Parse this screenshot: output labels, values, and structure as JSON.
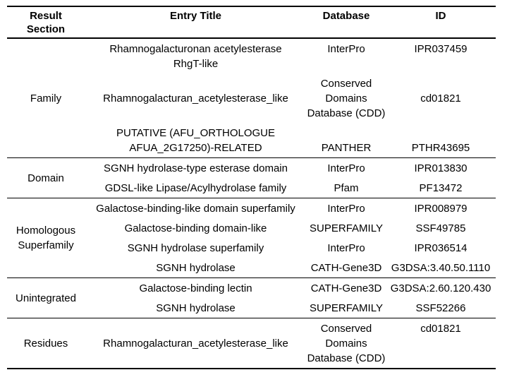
{
  "header": {
    "result_section": "Result Section",
    "entry_title": "Entry Title",
    "database": "Database",
    "id": "ID"
  },
  "sections": [
    {
      "label": "Family",
      "entries": [
        {
          "title": [
            "Rhamnogalacturonan acetylesterase",
            "RhgT-like"
          ],
          "database": [
            "InterPro"
          ],
          "id": [
            "IPR037459"
          ],
          "title_align": "top",
          "db_align": "top",
          "id_align": "top"
        },
        {
          "title": [
            "Rhamnogalacturan_acetylesterase_like"
          ],
          "database": [
            "Conserved",
            "Domains",
            "Database (CDD)"
          ],
          "id": [
            "cd01821"
          ],
          "title_align": "middle",
          "db_align": "middle",
          "id_align": "middle"
        },
        {
          "title": [
            "PUTATIVE (AFU_ORTHOLOGUE",
            "AFUA_2G17250)-RELATED"
          ],
          "database": [
            "PANTHER"
          ],
          "id": [
            "PTHR43695"
          ],
          "title_align": "bottom",
          "db_align": "bottom",
          "id_align": "bottom"
        }
      ]
    },
    {
      "label": "Domain",
      "entries": [
        {
          "title": [
            "SGNH hydrolase-type esterase domain"
          ],
          "database": [
            "InterPro"
          ],
          "id": [
            "IPR013830"
          ]
        },
        {
          "title": [
            "GDSL-like Lipase/Acylhydrolase family"
          ],
          "database": [
            "Pfam"
          ],
          "id": [
            "PF13472"
          ]
        }
      ]
    },
    {
      "label": "Homologous Superfamily",
      "entries": [
        {
          "title": [
            "Galactose-binding-like domain superfamily"
          ],
          "database": [
            "InterPro"
          ],
          "id": [
            "IPR008979"
          ]
        },
        {
          "title": [
            "Galactose-binding domain-like"
          ],
          "database": [
            "SUPERFAMILY"
          ],
          "id": [
            "SSF49785"
          ]
        },
        {
          "title": [
            "SGNH hydrolase superfamily"
          ],
          "database": [
            "InterPro"
          ],
          "id": [
            "IPR036514"
          ]
        },
        {
          "title": [
            "SGNH hydrolase"
          ],
          "database": [
            "CATH-Gene3D"
          ],
          "id": [
            "G3DSA:3.40.50.1110"
          ]
        }
      ]
    },
    {
      "label": "Unintegrated",
      "entries": [
        {
          "title": [
            "Galactose-binding lectin"
          ],
          "database": [
            "CATH-Gene3D"
          ],
          "id": [
            "G3DSA:2.60.120.430"
          ]
        },
        {
          "title": [
            "SGNH hydrolase"
          ],
          "database": [
            "SUPERFAMILY"
          ],
          "id": [
            "SSF52266"
          ]
        }
      ]
    },
    {
      "label": "Residues",
      "entries": [
        {
          "title": [
            "Rhamnogalacturan_acetylesterase_like"
          ],
          "database": [
            "Conserved",
            "Domains",
            "Database (CDD)"
          ],
          "id": [
            "cd01821"
          ],
          "title_align": "middle",
          "db_align": "middle",
          "id_align": "top"
        }
      ]
    }
  ],
  "colors": {
    "text": "#000000",
    "border": "#000000",
    "background": "#ffffff"
  }
}
